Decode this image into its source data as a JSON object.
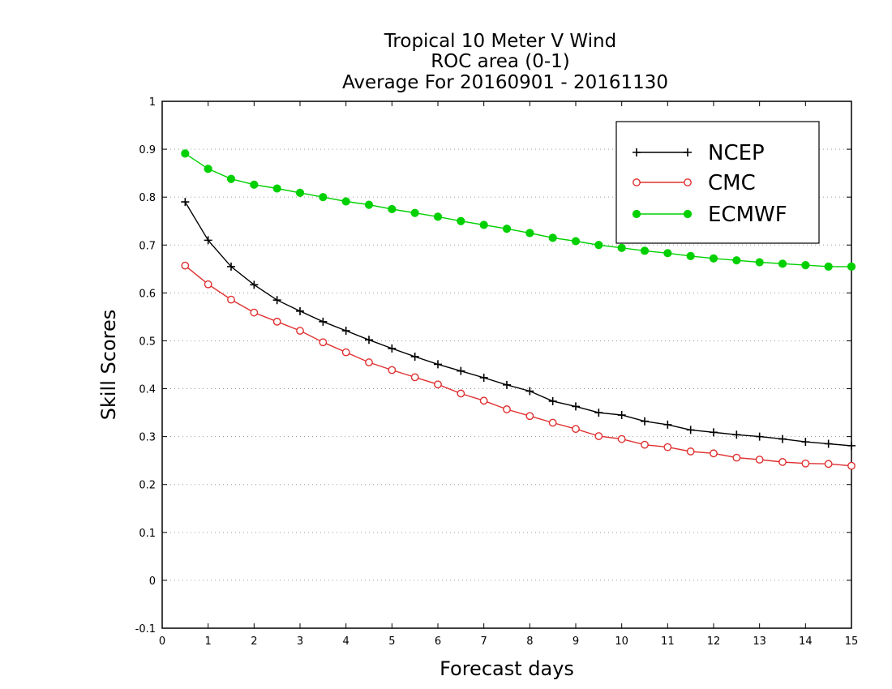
{
  "chart_data": {
    "type": "line",
    "title": [
      "Tropical 10 Meter V Wind",
      "ROC area (0-1)",
      "Average For 20160901 - 20161130"
    ],
    "xlabel": "Forecast days",
    "ylabel": "Skill Scores",
    "xlim": [
      0,
      15
    ],
    "ylim": [
      -0.1,
      1
    ],
    "xticks": [
      "0",
      "1",
      "2",
      "3",
      "4",
      "5",
      "6",
      "7",
      "8",
      "9",
      "10",
      "11",
      "12",
      "13",
      "14",
      "15"
    ],
    "yticks": [
      "-0.1",
      "0",
      "0.1",
      "0.2",
      "0.3",
      "0.4",
      "0.5",
      "0.6",
      "0.7",
      "0.8",
      "0.9",
      "1"
    ],
    "grid": "horizontal dotted",
    "legend_position": "top-right",
    "x": [
      0.5,
      1,
      1.5,
      2,
      2.5,
      3,
      3.5,
      4,
      4.5,
      5,
      5.5,
      6,
      6.5,
      7,
      7.5,
      8,
      8.5,
      9,
      9.5,
      10,
      10.5,
      11,
      11.5,
      12,
      12.5,
      13,
      13.5,
      14,
      14.5,
      15
    ],
    "series": [
      {
        "name": "NCEP",
        "color": "#000000",
        "marker": "plus",
        "values": [
          0.79,
          0.71,
          0.655,
          0.617,
          0.585,
          0.562,
          0.54,
          0.521,
          0.502,
          0.484,
          0.467,
          0.451,
          0.437,
          0.423,
          0.408,
          0.395,
          0.374,
          0.363,
          0.35,
          0.345,
          0.332,
          0.325,
          0.314,
          0.309,
          0.304,
          0.3,
          0.295,
          0.289,
          0.285,
          0.281
        ]
      },
      {
        "name": "CMC",
        "color": "#e03030",
        "marker": "open-circle",
        "values": [
          0.657,
          0.618,
          0.586,
          0.559,
          0.54,
          0.521,
          0.497,
          0.476,
          0.455,
          0.439,
          0.424,
          0.409,
          0.39,
          0.375,
          0.357,
          0.343,
          0.329,
          0.316,
          0.301,
          0.295,
          0.283,
          0.278,
          0.269,
          0.265,
          0.256,
          0.252,
          0.247,
          0.244,
          0.243,
          0.239
        ]
      },
      {
        "name": "ECMWF",
        "color": "#00d000",
        "marker": "filled-circle",
        "values": [
          0.891,
          0.859,
          0.838,
          0.826,
          0.818,
          0.809,
          0.8,
          0.791,
          0.784,
          0.775,
          0.767,
          0.759,
          0.75,
          0.742,
          0.734,
          0.725,
          0.715,
          0.708,
          0.7,
          0.694,
          0.688,
          0.683,
          0.677,
          0.672,
          0.668,
          0.664,
          0.661,
          0.658,
          0.655,
          0.655
        ]
      }
    ]
  }
}
